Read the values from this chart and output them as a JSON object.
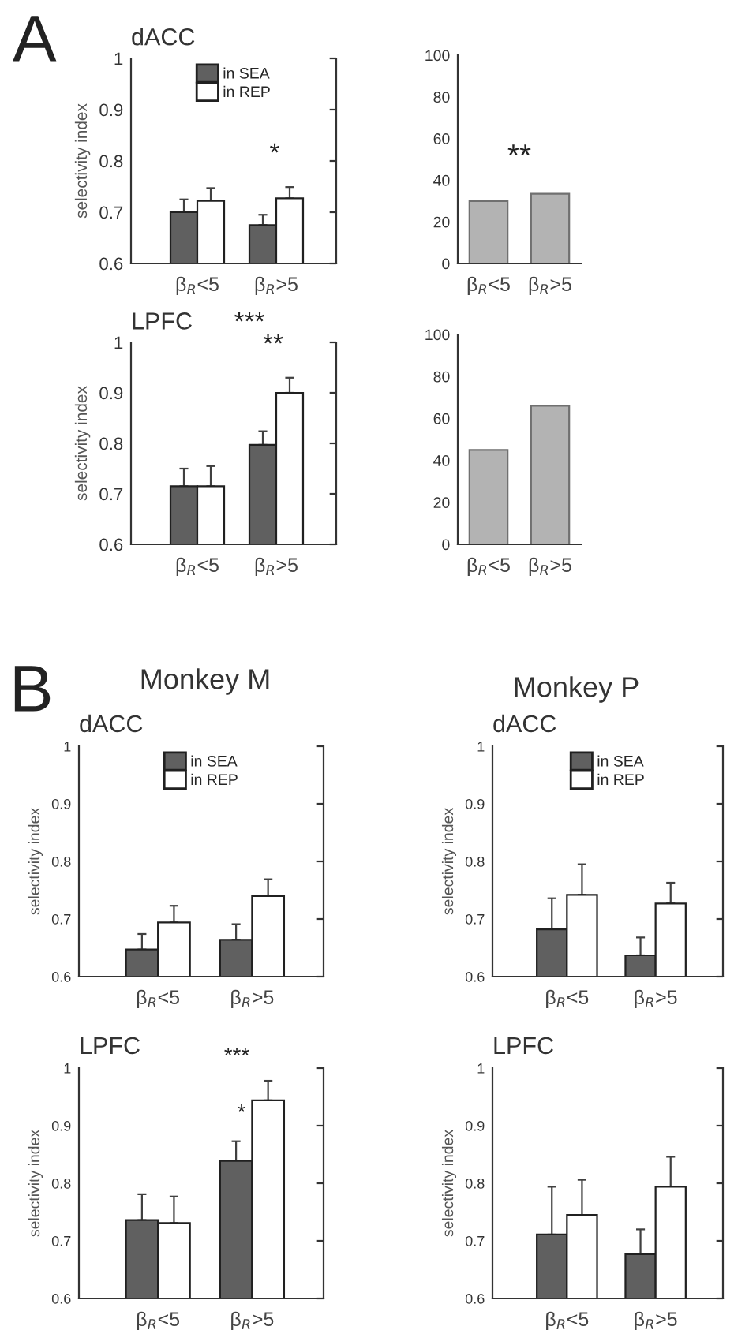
{
  "chart_data": [
    {
      "type": "bar",
      "title": "dACC",
      "ylabel": "selectivity index",
      "categories": [
        "β$_{R}$<5",
        "β$_{R}$>5"
      ],
      "ylim": [
        0.6,
        1
      ],
      "yticks": [
        0.6,
        0.7,
        0.8,
        0.9,
        1
      ],
      "legend": "top",
      "grid": false,
      "series": [
        {
          "name": "in SEA",
          "color": "#606060",
          "values": [
            0.7,
            0.675
          ],
          "errors": [
            0.025,
            0.02
          ]
        },
        {
          "name": "in REP",
          "color": "#ffffff",
          "values": [
            0.722,
            0.727
          ],
          "errors": [
            0.025,
            0.022
          ]
        }
      ],
      "annotations": [
        "A",
        "*"
      ]
    },
    {
      "type": "bar",
      "categories": [
        "β$_{R}$<5",
        "β$_{R}$>5"
      ],
      "ylim": [
        0,
        100
      ],
      "yticks": [
        0,
        20,
        40,
        60,
        80,
        100
      ],
      "grid": false,
      "legend": false,
      "series": [
        {
          "color": "#b3b3b3",
          "values": [
            30,
            33.5
          ]
        }
      ]
    },
    {
      "type": "bar",
      "title": "LPFC",
      "ylabel": "selectivity index",
      "categories": [
        "β$_{R}$<5",
        "β$_{R}$>5"
      ],
      "ylim": [
        0.6,
        1
      ],
      "yticks": [
        0.6,
        0.7,
        0.8,
        0.9,
        1
      ],
      "legend": false,
      "grid": false,
      "series": [
        {
          "color": "#606060",
          "values": [
            0.715,
            0.797
          ],
          "errors": [
            0.035,
            0.027
          ]
        },
        {
          "color": "#ffffff",
          "values": [
            0.715,
            0.9
          ],
          "errors": [
            0.04,
            0.03
          ]
        }
      ],
      "annotations": [
        "***",
        "**"
      ]
    },
    {
      "type": "bar",
      "categories": [
        "β$_{R}$<5",
        "β$_{R}$>5"
      ],
      "ylim": [
        0,
        100
      ],
      "yticks": [
        0,
        20,
        40,
        60,
        80,
        100
      ],
      "grid": false,
      "legend": false,
      "series": [
        {
          "color": "#b3b3b3",
          "values": [
            45,
            66
          ]
        }
      ],
      "annotations": [
        "**"
      ]
    },
    {
      "type": "bar",
      "title": "dACC",
      "subtitle": "Monkey M",
      "ylabel": "selectivity index",
      "categories": [
        "β$_{R}$<5",
        "β$_{R}$>5"
      ],
      "ylim": [
        0.6,
        1
      ],
      "yticks": [
        0.6,
        0.7,
        0.8,
        0.9,
        1
      ],
      "legend": "top",
      "grid": false,
      "series": [
        {
          "name": "in SEA",
          "color": "#606060",
          "values": [
            0.647,
            0.664
          ],
          "errors": [
            0.027,
            0.027
          ]
        },
        {
          "name": "in REP",
          "color": "#ffffff",
          "values": [
            0.694,
            0.74
          ],
          "errors": [
            0.029,
            0.029
          ]
        }
      ],
      "annotations": [
        "B"
      ]
    },
    {
      "type": "bar",
      "title": "dACC",
      "subtitle": "Monkey P",
      "ylabel": "selectivity index",
      "categories": [
        "β$_{R}$<5",
        "β$_{R}$>5"
      ],
      "ylim": [
        0.6,
        1
      ],
      "yticks": [
        0.6,
        0.7,
        0.8,
        0.9,
        1
      ],
      "legend": "top",
      "grid": false,
      "series": [
        {
          "name": "in SEA",
          "color": "#606060",
          "values": [
            0.682,
            0.637
          ],
          "errors": [
            0.054,
            0.031
          ]
        },
        {
          "name": "in REP",
          "color": "#ffffff",
          "values": [
            0.742,
            0.727
          ],
          "errors": [
            0.053,
            0.036
          ]
        }
      ]
    },
    {
      "type": "bar",
      "title": "LPFC",
      "ylabel": "selectivity index",
      "categories": [
        "β$_{R}$<5",
        "β$_{R}$>5"
      ],
      "ylim": [
        0.6,
        1
      ],
      "yticks": [
        0.6,
        0.7,
        0.8,
        0.9,
        1
      ],
      "legend": false,
      "grid": false,
      "series": [
        {
          "color": "#606060",
          "values": [
            0.736,
            0.839
          ],
          "errors": [
            0.045,
            0.034
          ]
        },
        {
          "color": "#ffffff",
          "values": [
            0.731,
            0.944
          ],
          "errors": [
            0.046,
            0.034
          ]
        }
      ],
      "annotations": [
        "***",
        "*"
      ]
    },
    {
      "type": "bar",
      "title": "LPFC",
      "ylabel": "selectivity index",
      "categories": [
        "β$_{R}$<5",
        "β$_{R}$>5"
      ],
      "ylim": [
        0.6,
        1
      ],
      "yticks": [
        0.6,
        0.7,
        0.8,
        0.9,
        1
      ],
      "legend": false,
      "grid": false,
      "series": [
        {
          "color": "#606060",
          "values": [
            0.711,
            0.677
          ],
          "errors": [
            0.083,
            0.043
          ]
        },
        {
          "color": "#ffffff",
          "values": [
            0.745,
            0.794
          ],
          "errors": [
            0.061,
            0.052
          ]
        }
      ]
    }
  ]
}
